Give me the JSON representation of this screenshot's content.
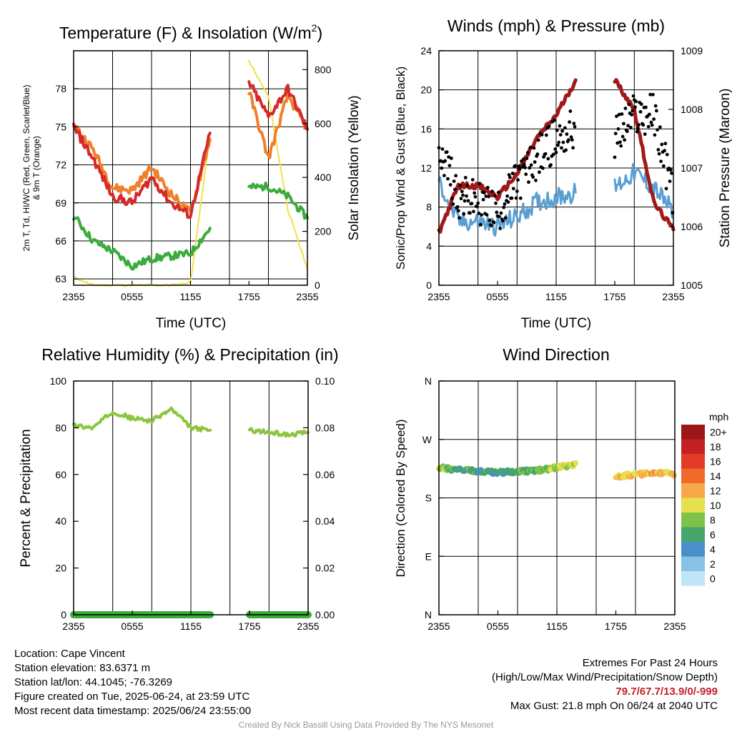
{
  "colors": {
    "temp": "#d42a2a",
    "dewpoint": "#3bab3b",
    "heat_index": "#f07f2a",
    "temp_9m": "#f07f2a",
    "insolation": "#f2e04a",
    "wind_sonic": "#5a9fd4",
    "wind_gust": "#000000",
    "pressure": "#a01818",
    "rh": "#8cc63f",
    "precip": "#3bab3b",
    "extremes_text": "#c0202a",
    "credit_text": "#999999"
  },
  "time_ticks": [
    "2355",
    "0555",
    "1155",
    "1755",
    "2355"
  ],
  "charts": {
    "temp": {
      "title_main": "Temperature (F) & Insolation (W/m",
      "title_sup": "2",
      "title_end": ")",
      "ylabel_line1": "2m T, Td, HI/WC (Red, Green, Scarlet/Blue)",
      "ylabel_line2": "& 9m T (Orange)",
      "ylabel_right": "Solar Insolation (Yellow)",
      "xlabel": "Time (UTC)",
      "left_ticks": [
        "63",
        "66",
        "69",
        "72",
        "75",
        "78"
      ],
      "right_ticks": [
        "0",
        "200",
        "400",
        "600",
        "800"
      ]
    },
    "wind": {
      "title": "Winds (mph) & Pressure (mb)",
      "ylabel": "Sonic/Prop Wind & Gust (Blue, Black)",
      "ylabel_right": "Station Pressure (Maroon)",
      "xlabel": "Time (UTC)",
      "left_ticks": [
        "0",
        "4",
        "8",
        "12",
        "16",
        "20",
        "24"
      ],
      "right_ticks": [
        "1005",
        "1006",
        "1007",
        "1008",
        "1009"
      ]
    },
    "rh": {
      "title": "Relative Humidity (%) & Precipitation (in)",
      "ylabel": "Percent & Precipitation",
      "left_ticks": [
        "0",
        "20",
        "40",
        "60",
        "80",
        "100"
      ],
      "right_ticks": [
        "0.00",
        "0.02",
        "0.04",
        "0.06",
        "0.08",
        "0.10"
      ]
    },
    "dir": {
      "title": "Wind Direction",
      "ylabel": "Direction (Colored By Speed)",
      "left_ticks": [
        "N",
        "E",
        "S",
        "W",
        "N"
      ],
      "colorbar_title": "mph",
      "colorbar_labels": [
        "0",
        "2",
        "4",
        "6",
        "8",
        "10",
        "12",
        "14",
        "16",
        "18",
        "20+"
      ],
      "colorbar_colors": [
        "#bfe6f7",
        "#87c1e4",
        "#4a8fc8",
        "#45a56b",
        "#7ec24a",
        "#e6e04f",
        "#f7a84a",
        "#f06a2a",
        "#e33a2a",
        "#c42222",
        "#9a1717"
      ]
    }
  },
  "chart_data": [
    {
      "type": "line",
      "title": "Temperature (F) & Insolation (W/m2)",
      "xlabel": "Time (UTC)",
      "x": [
        "2355",
        "0155",
        "0355",
        "0555",
        "0755",
        "0955",
        "1155",
        "1355",
        "1555",
        "1755",
        "1955",
        "2155",
        "2355"
      ],
      "ylim": [
        62.5,
        81
      ],
      "y2lim": [
        0,
        870
      ],
      "series": [
        {
          "name": "2m T",
          "axis": "left",
          "values": [
            75.0,
            72.5,
            69.5,
            69.0,
            71.0,
            69.0,
            68.0,
            74.5,
            null,
            78.5,
            75.8,
            78.0,
            74.8
          ]
        },
        {
          "name": "9m T",
          "axis": "left",
          "values": [
            75.2,
            73.2,
            70.2,
            70.0,
            71.8,
            69.7,
            68.2,
            74.0,
            null,
            77.8,
            72.5,
            77.5,
            74.8
          ]
        },
        {
          "name": "Td",
          "axis": "left",
          "values": [
            68.0,
            66.0,
            65.2,
            64.0,
            64.6,
            64.8,
            65.0,
            67.0,
            null,
            70.2,
            70.3,
            69.5,
            67.8
          ]
        },
        {
          "name": "Solar Insolation",
          "axis": "right",
          "values": [
            30,
            0,
            0,
            0,
            0,
            0,
            10,
            560,
            null,
            830,
            700,
            280,
            60
          ]
        }
      ]
    },
    {
      "type": "line",
      "title": "Winds (mph) & Pressure (mb)",
      "xlabel": "Time (UTC)",
      "x": [
        "2355",
        "0155",
        "0355",
        "0555",
        "0755",
        "0955",
        "1155",
        "1355",
        "1555",
        "1755",
        "1955",
        "2155",
        "2355"
      ],
      "ylim": [
        0,
        24
      ],
      "y2lim": [
        1005,
        1009
      ],
      "series": [
        {
          "name": "Sonic/Prop Wind",
          "axis": "left",
          "values": [
            10.5,
            6.5,
            6.5,
            6.0,
            7.0,
            8.5,
            9.0,
            9.5,
            null,
            10.0,
            11.5,
            10.0,
            7.5
          ]
        },
        {
          "name": "Gust",
          "axis": "left",
          "values": [
            14.5,
            9.0,
            8.5,
            7.5,
            10.5,
            13.0,
            15.0,
            16.0,
            null,
            15.0,
            17.5,
            17.5,
            9.0
          ]
        },
        {
          "name": "Station Pressure",
          "axis": "right",
          "values": [
            1005.9,
            1006.7,
            1006.7,
            1006.5,
            1006.9,
            1007.5,
            1007.9,
            1008.5,
            null,
            1008.5,
            1008.0,
            1006.4,
            1005.95
          ]
        }
      ]
    },
    {
      "type": "line",
      "title": "Relative Humidity (%) & Precipitation (in)",
      "x": [
        "2355",
        "0155",
        "0355",
        "0555",
        "0755",
        "0955",
        "1155",
        "1355",
        "1555",
        "1755",
        "1955",
        "2155",
        "2355"
      ],
      "ylim": [
        0,
        100
      ],
      "y2lim": [
        0,
        0.1
      ],
      "series": [
        {
          "name": "Relative Humidity",
          "axis": "left",
          "values": [
            81,
            80,
            87,
            84,
            83,
            88,
            80,
            79,
            null,
            79,
            78,
            77,
            78
          ]
        },
        {
          "name": "Precipitation",
          "axis": "right",
          "values": [
            0,
            0,
            0,
            0,
            0,
            0,
            0,
            0,
            null,
            0,
            0,
            0,
            0
          ]
        }
      ]
    },
    {
      "type": "scatter",
      "title": "Wind Direction",
      "x": [
        "2355",
        "0155",
        "0355",
        "0555",
        "0755",
        "0955",
        "1155",
        "1355",
        "1555",
        "1755",
        "1955",
        "2155",
        "2355"
      ],
      "ylim": [
        0,
        360
      ],
      "y_ticks": [
        "N",
        "E",
        "S",
        "W",
        "N"
      ],
      "series": [
        {
          "name": "Direction",
          "values": [
            227,
            223,
            221,
            219,
            221,
            222,
            227,
            232,
            null,
            213,
            216,
            218,
            217
          ]
        },
        {
          "name": "Speed (mph)",
          "values": [
            9,
            6,
            6,
            5,
            6,
            7,
            9,
            10,
            null,
            11,
            11,
            12,
            10
          ]
        }
      ]
    }
  ],
  "info_left": [
    "Location: Cape Vincent",
    "Station elevation: 83.6371 m",
    "Station lat/lon: 44.1045; -76.3269",
    "Figure created on Tue, 2025-06-24, at 23:59 UTC",
    "Most recent data timestamp: 2025/06/24 23:55:00"
  ],
  "info_right": {
    "line1": "Extremes For Past 24 Hours",
    "line2": "(High/Low/Max Wind/Precipitation/Snow Depth)",
    "extremes": "79.7/67.7/13.9/0/-999",
    "max_gust": "Max Gust: 21.8 mph On 06/24 at 2040 UTC"
  },
  "credit": "Created By Nick Bassill Using Data Provided By The NYS Mesonet"
}
